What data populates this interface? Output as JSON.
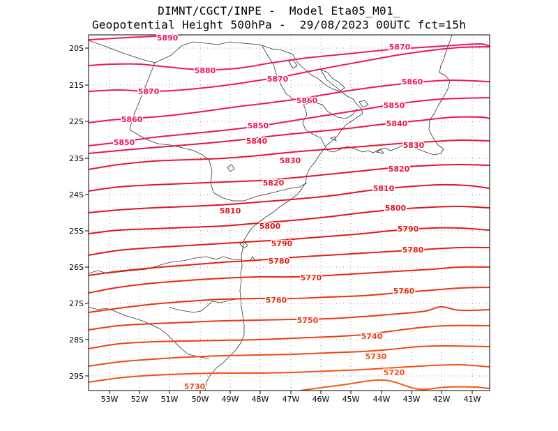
{
  "title": {
    "line1": "DIMNT/CGCT/INPE -  Model Eta05_M01_",
    "line2": "Geopotential Height 500hPa -  29/08/2023 00UTC fct=15h"
  },
  "axes": {
    "lon_labels": [
      "53W",
      "52W",
      "51W",
      "50W",
      "49W",
      "48W",
      "47W",
      "46W",
      "45W",
      "44W",
      "43W",
      "42W",
      "41W"
    ],
    "lat_labels": [
      "20S",
      "21S",
      "22S",
      "23S",
      "24S",
      "25S",
      "26S",
      "27S",
      "28S",
      "29S"
    ]
  },
  "contours": [
    {
      "value": 5890,
      "label": "5890",
      "color": "#f0146e"
    },
    {
      "value": 5880,
      "label": "5880",
      "color": "#f0146e"
    },
    {
      "value": 5870,
      "label": "5870",
      "color": "#f01464"
    },
    {
      "value": 5860,
      "label": "5860",
      "color": "#f0145a"
    },
    {
      "value": 5850,
      "label": "5850",
      "color": "#ee1450"
    },
    {
      "value": 5840,
      "label": "5840",
      "color": "#ea1446"
    },
    {
      "value": 5830,
      "label": "5830",
      "color": "#e6143c"
    },
    {
      "value": 5820,
      "label": "5820",
      "color": "#e41432"
    },
    {
      "value": 5810,
      "label": "5810",
      "color": "#e21428"
    },
    {
      "value": 5800,
      "label": "5800",
      "color": "#e2141e"
    },
    {
      "value": 5790,
      "label": "5790",
      "color": "#e41814"
    },
    {
      "value": 5780,
      "label": "5780",
      "color": "#e62014"
    },
    {
      "value": 5770,
      "label": "5770",
      "color": "#e82814"
    },
    {
      "value": 5760,
      "label": "5760",
      "color": "#ea3014"
    },
    {
      "value": 5750,
      "label": "5750",
      "color": "#ec3814"
    },
    {
      "value": 5740,
      "label": "5740",
      "color": "#ee4014"
    },
    {
      "value": 5730,
      "label": "5730",
      "color": "#f04814"
    },
    {
      "value": 5720,
      "label": "5720",
      "color": "#f25014"
    },
    {
      "value": 5710,
      "label": "",
      "color": "#f45814"
    }
  ]
}
